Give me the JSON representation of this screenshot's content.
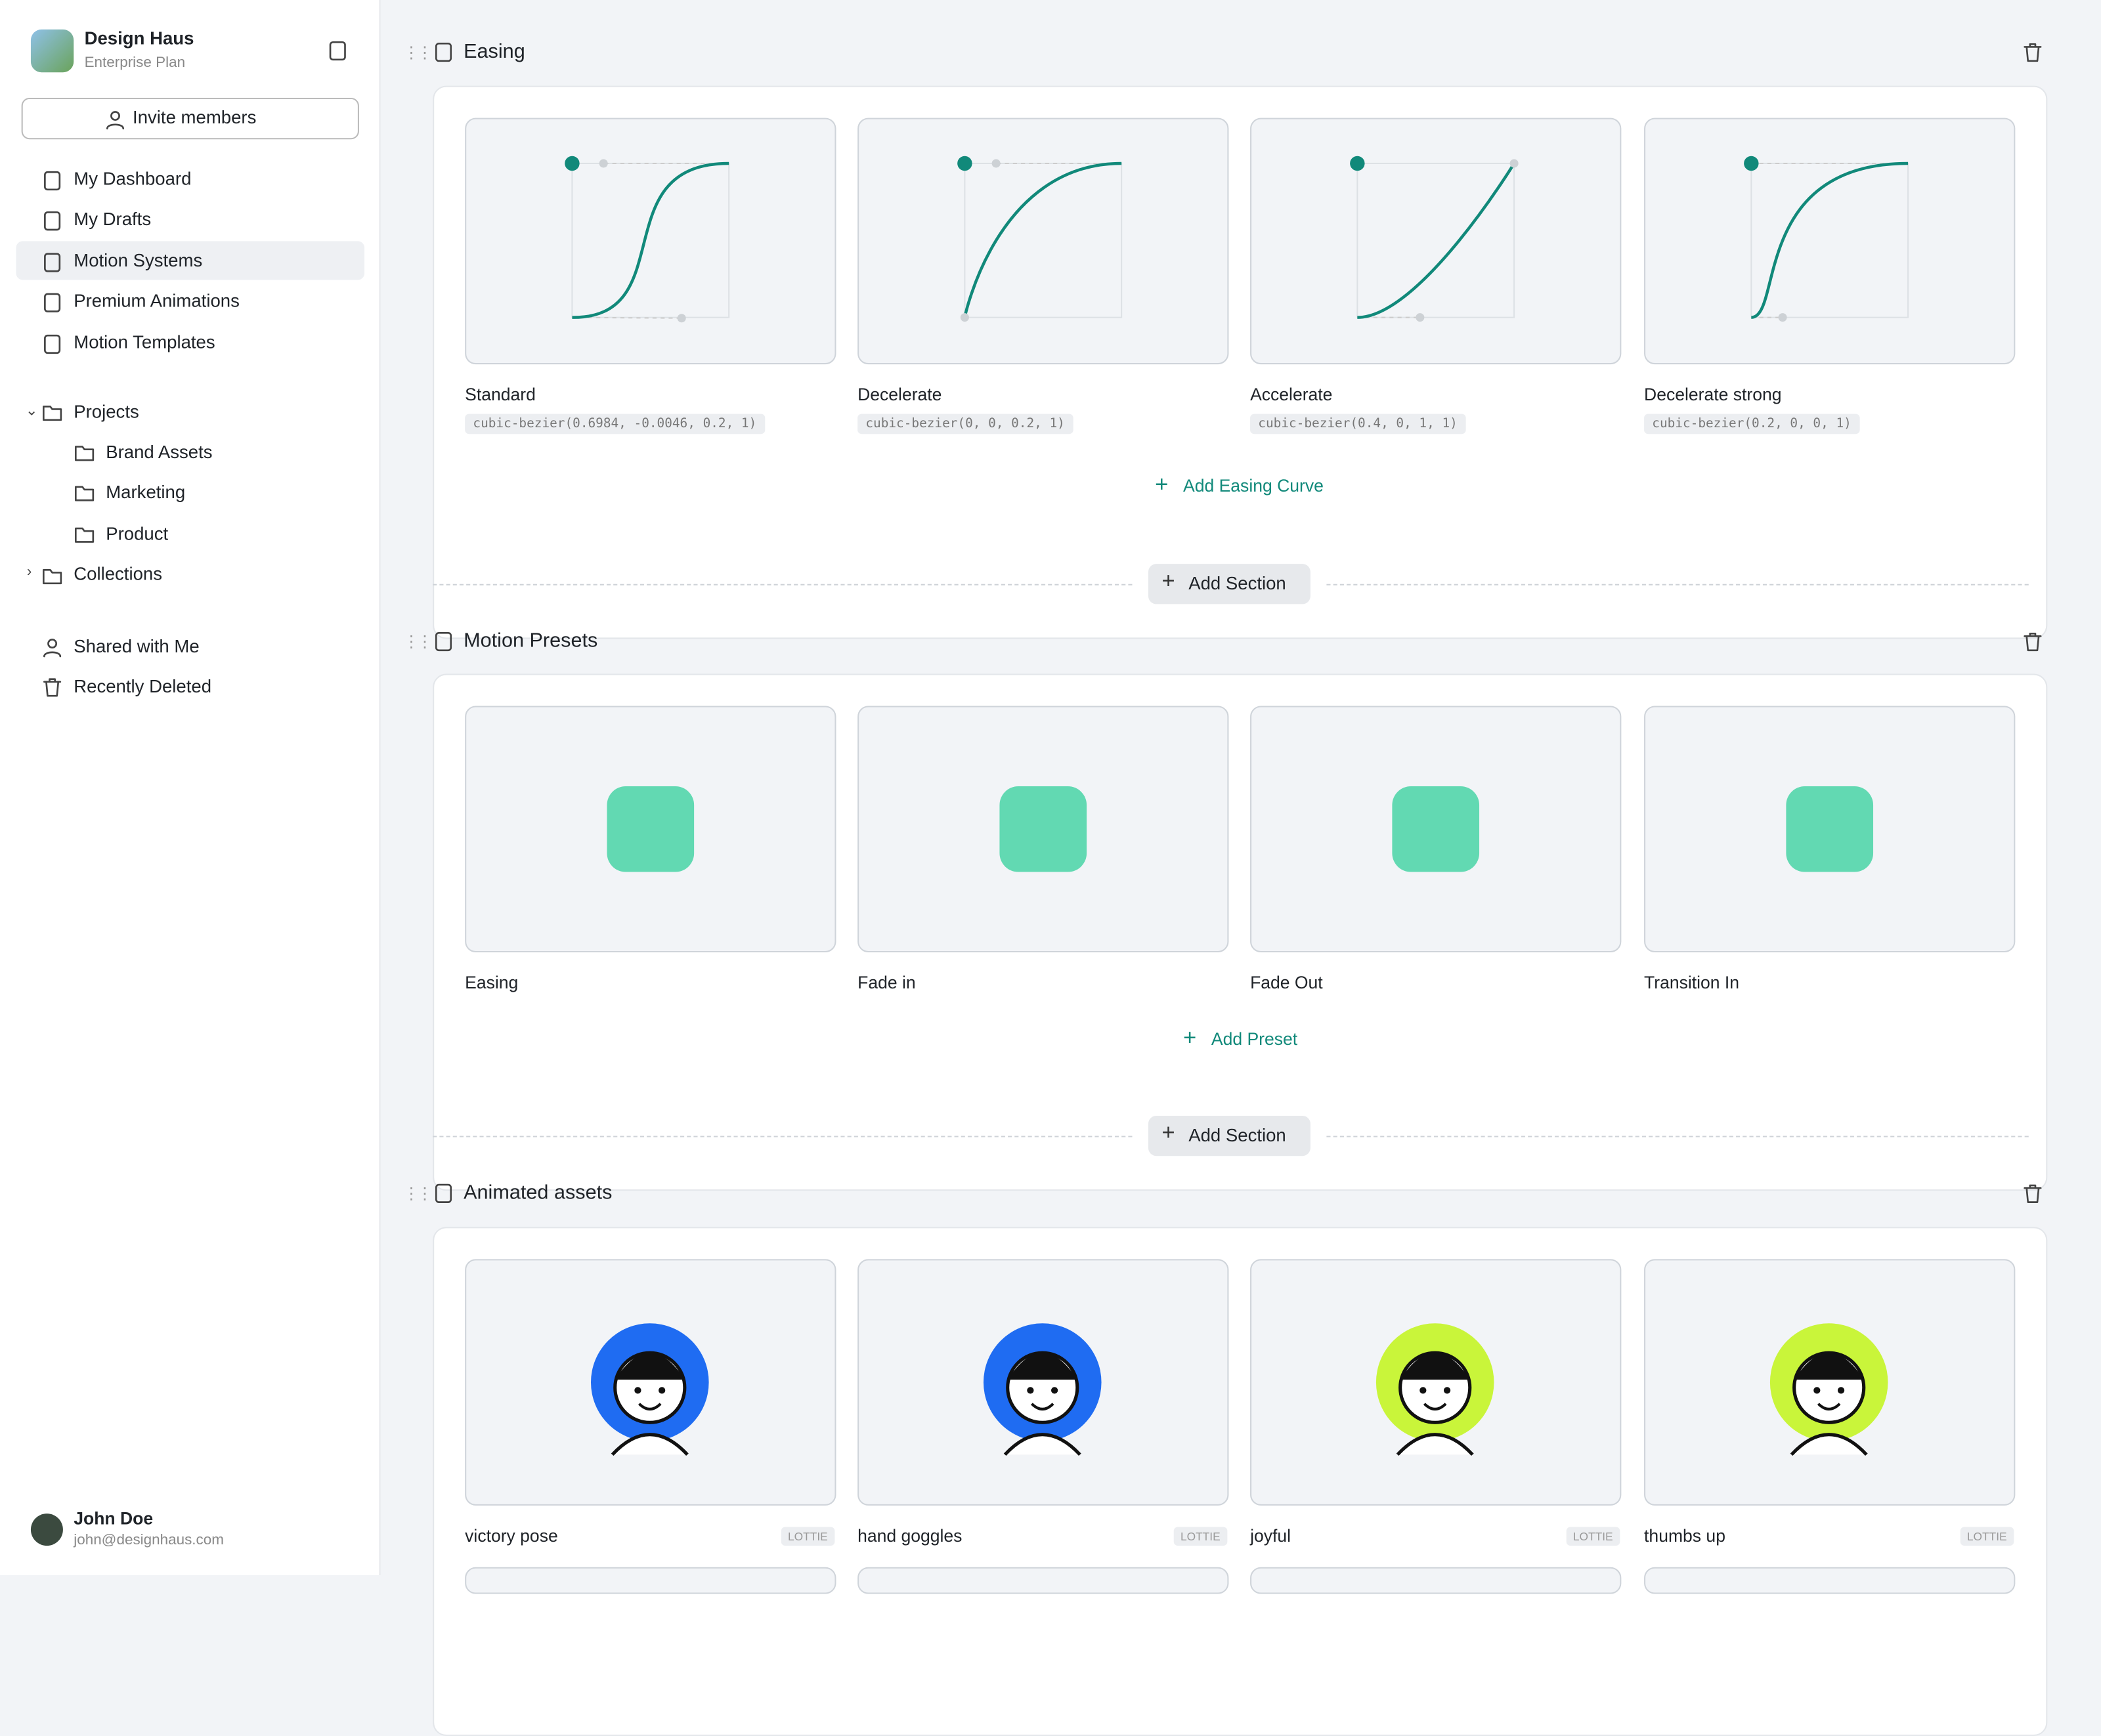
{
  "sidebar": {
    "workspace": "Design Haus",
    "plan": "Enterprise Plan",
    "invite": "Invite members",
    "nav": [
      "My Dashboard",
      "My Drafts",
      "Motion Systems",
      "Premium Animations",
      "Motion Templates"
    ],
    "projects": {
      "label": "Projects",
      "children": [
        "Brand Assets",
        "Marketing",
        "Product"
      ]
    },
    "collections": "Collections",
    "more": [
      "Shared with Me",
      "Recently Deleted"
    ],
    "user": {
      "name": "John Doe",
      "email": "john@designhaus.com"
    }
  },
  "add_section": "Add Section",
  "sections": [
    {
      "title": "Easing",
      "items": [
        {
          "name": "Standard",
          "code": "cubic-bezier(0.6984, -0.0046, 0.2, 1)"
        },
        {
          "name": "Decelerate",
          "code": "cubic-bezier(0, 0, 0.2, 1)"
        },
        {
          "name": "Accelerate",
          "code": "cubic-bezier(0.4, 0, 1, 1)"
        },
        {
          "name": "Decelerate strong",
          "code": "cubic-bezier(0.2, 0, 0, 1)"
        }
      ],
      "add": "Add Easing Curve"
    },
    {
      "title": "Motion Presets",
      "items": [
        {
          "name": "Easing"
        },
        {
          "name": "Fade in"
        },
        {
          "name": "Fade Out"
        },
        {
          "name": "Transition In"
        }
      ],
      "add": "Add Preset"
    },
    {
      "title": "Animated assets",
      "items": [
        {
          "name": "victory pose",
          "tag": "LOTTIE"
        },
        {
          "name": "hand goggles",
          "tag": "LOTTIE"
        },
        {
          "name": "joyful",
          "tag": "LOTTIE"
        },
        {
          "name": "thumbs up",
          "tag": "LOTTIE"
        }
      ]
    }
  ]
}
